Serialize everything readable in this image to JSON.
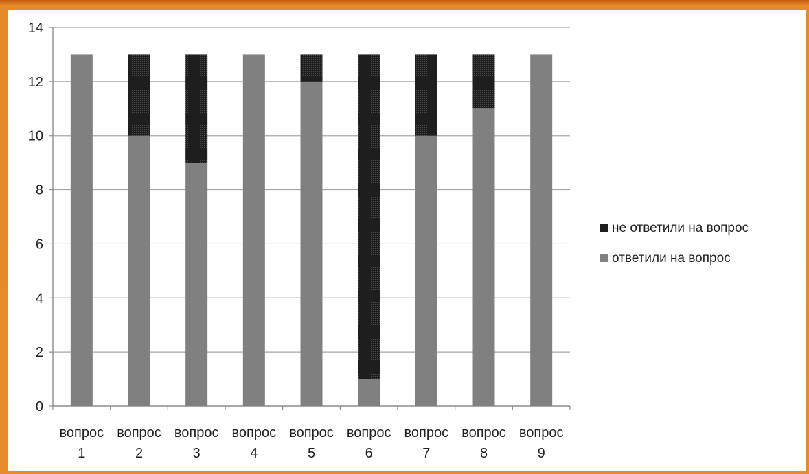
{
  "chart_data": {
    "type": "bar",
    "stacked": true,
    "categories": [
      [
        "вопрос",
        "1"
      ],
      [
        "вопрос",
        "2"
      ],
      [
        "вопрос",
        "3"
      ],
      [
        "вопрос",
        "4"
      ],
      [
        "вопрос",
        "5"
      ],
      [
        "вопрос",
        "6"
      ],
      [
        "вопрос",
        "7"
      ],
      [
        "вопрос",
        "8"
      ],
      [
        "вопрос",
        "9"
      ]
    ],
    "series": [
      {
        "name": "ответили на вопрос",
        "color": "#808080",
        "values": [
          13,
          10,
          9,
          13,
          12,
          1,
          10,
          11,
          13
        ]
      },
      {
        "name": "не ответили на вопрос",
        "color": "#1e1e1e",
        "values": [
          0,
          3,
          4,
          0,
          1,
          12,
          3,
          2,
          0
        ]
      }
    ],
    "legend_order": [
      "не ответили на вопрос",
      "ответили на вопрос"
    ],
    "legend_position": "right",
    "ylim": [
      0,
      14
    ],
    "yticks": [
      0,
      2,
      4,
      6,
      8,
      10,
      12,
      14
    ],
    "grid": true,
    "title": "",
    "xlabel": "",
    "ylabel": ""
  }
}
